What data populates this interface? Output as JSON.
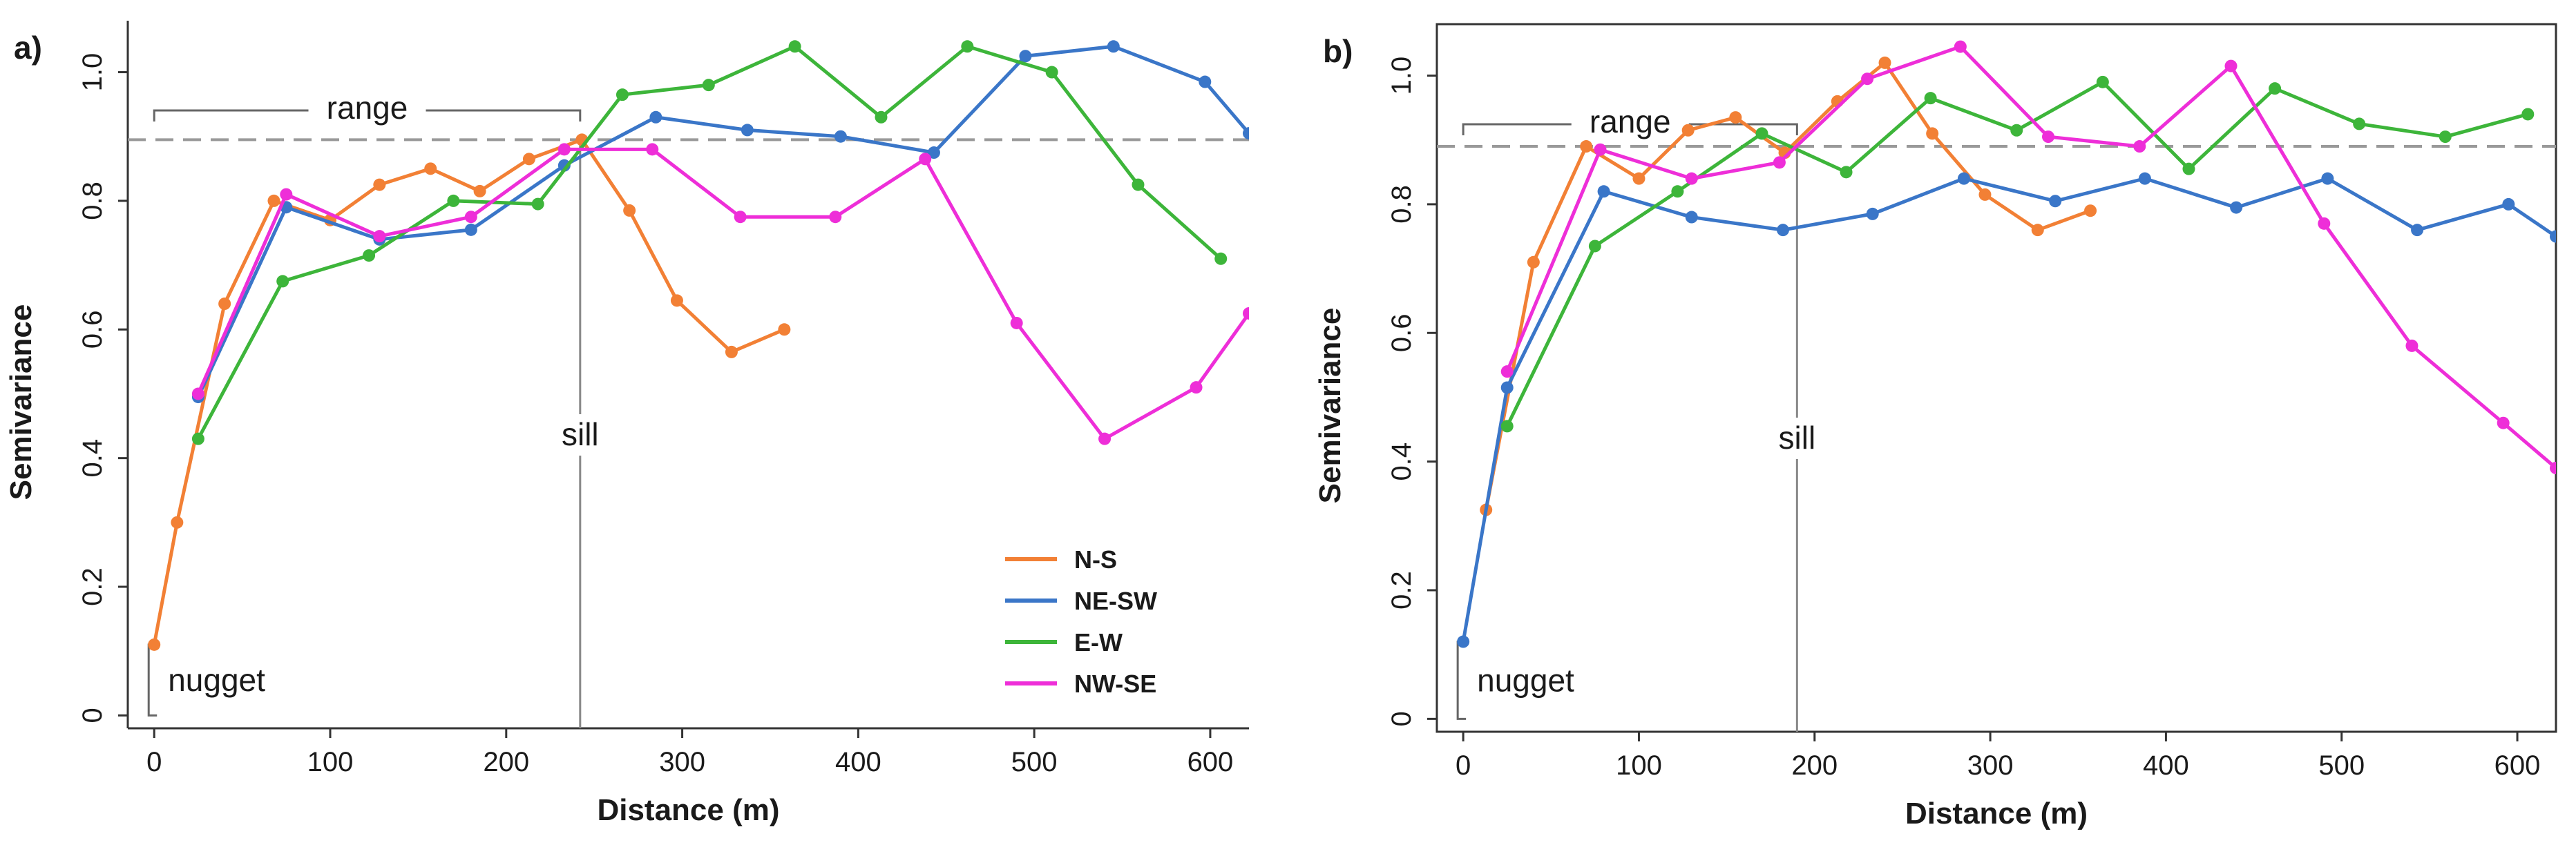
{
  "chart_data": [
    {
      "type": "line",
      "panel_label": "a)",
      "xlabel": "Distance (m)",
      "ylabel": "Semivariance",
      "xlim": [
        -15,
        622
      ],
      "ylim": [
        -0.02,
        1.08
      ],
      "xticks": [
        0,
        100,
        200,
        300,
        400,
        500,
        600
      ],
      "yticks": [
        0,
        0.2,
        0.4,
        0.6,
        0.8,
        1.0
      ],
      "ytick_labels": [
        "0",
        "0.2",
        "0.4",
        "0.6",
        "0.8",
        "1.0"
      ],
      "sill_value": 0.895,
      "range_value": 242,
      "nugget_value": 0.11,
      "annotations": {
        "range": "range",
        "sill": "sill",
        "nugget": "nugget"
      },
      "legend": {
        "placement": "bottom-right",
        "entries": [
          "N-S",
          "NE-SW",
          "E-W",
          "NW-SE"
        ]
      },
      "series": [
        {
          "name": "N-S",
          "color": "#f28035",
          "x": [
            0,
            13,
            40,
            68,
            100,
            128,
            157,
            185,
            213,
            243,
            270,
            297,
            328,
            358
          ],
          "y": [
            0.11,
            0.3,
            0.64,
            0.8,
            0.77,
            0.825,
            0.85,
            0.815,
            0.865,
            0.895,
            0.785,
            0.645,
            0.565,
            0.6
          ]
        },
        {
          "name": "NE-SW",
          "color": "#3a76c8",
          "x": [
            25,
            75,
            128,
            180,
            233,
            285,
            337,
            390,
            443,
            495,
            545,
            597,
            622
          ],
          "y": [
            0.495,
            0.79,
            0.74,
            0.755,
            0.855,
            0.93,
            0.91,
            0.9,
            0.875,
            1.025,
            1.04,
            0.985,
            0.905
          ]
        },
        {
          "name": "E-W",
          "color": "#3db53a",
          "x": [
            25,
            73,
            122,
            170,
            218,
            266,
            315,
            364,
            413,
            462,
            510,
            559,
            606
          ],
          "y": [
            0.43,
            0.675,
            0.715,
            0.8,
            0.795,
            0.965,
            0.98,
            1.04,
            0.93,
            1.04,
            1.0,
            0.825,
            0.71
          ]
        },
        {
          "name": "NW-SE",
          "color": "#ee2ed8",
          "x": [
            25,
            75,
            128,
            180,
            233,
            283,
            333,
            387,
            438,
            490,
            540,
            592,
            622
          ],
          "y": [
            0.5,
            0.81,
            0.745,
            0.775,
            0.88,
            0.88,
            0.775,
            0.775,
            0.865,
            0.61,
            0.43,
            0.51,
            0.625
          ]
        }
      ]
    },
    {
      "type": "line",
      "panel_label": "b)",
      "xlabel": "Distance (m)",
      "ylabel": "Semivariance",
      "xlim": [
        -15,
        622
      ],
      "ylim": [
        -0.02,
        1.08
      ],
      "xticks": [
        0,
        100,
        200,
        300,
        400,
        500,
        600
      ],
      "yticks": [
        0,
        0.2,
        0.4,
        0.6,
        0.8,
        1.0
      ],
      "ytick_labels": [
        "0",
        "0.2",
        "0.4",
        "0.6",
        "0.8",
        "1.0"
      ],
      "sill_value": 0.89,
      "range_value": 190,
      "nugget_value": 0.12,
      "annotations": {
        "range": "range",
        "sill": "sill",
        "nugget": "nugget"
      },
      "series": [
        {
          "name": "N-S",
          "color": "#f28035",
          "x": [
            13,
            40,
            70,
            100,
            128,
            155,
            183,
            213,
            240,
            267,
            297,
            327,
            357
          ],
          "y": [
            0.325,
            0.71,
            0.89,
            0.84,
            0.915,
            0.935,
            0.88,
            0.96,
            1.02,
            0.91,
            0.815,
            0.76,
            0.79
          ]
        },
        {
          "name": "NE-SW",
          "color": "#3a76c8",
          "x": [
            0,
            25,
            80,
            130,
            182,
            233,
            285,
            337,
            388,
            440,
            492,
            543,
            595,
            622
          ],
          "y": [
            0.12,
            0.515,
            0.82,
            0.78,
            0.76,
            0.785,
            0.84,
            0.805,
            0.84,
            0.795,
            0.84,
            0.76,
            0.8,
            0.75
          ]
        },
        {
          "name": "E-W",
          "color": "#3db53a",
          "x": [
            25,
            75,
            122,
            170,
            218,
            266,
            315,
            364,
            413,
            462,
            510,
            559,
            606
          ],
          "y": [
            0.455,
            0.735,
            0.82,
            0.91,
            0.85,
            0.965,
            0.915,
            0.99,
            0.855,
            0.98,
            0.925,
            0.905,
            0.94
          ]
        },
        {
          "name": "NW-SE",
          "color": "#ee2ed8",
          "x": [
            25,
            78,
            130,
            180,
            230,
            283,
            333,
            385,
            437,
            490,
            540,
            592,
            622
          ],
          "y": [
            0.54,
            0.885,
            0.84,
            0.865,
            0.995,
            1.045,
            0.905,
            0.89,
            1.015,
            0.77,
            0.58,
            0.46,
            0.39
          ]
        }
      ]
    }
  ]
}
